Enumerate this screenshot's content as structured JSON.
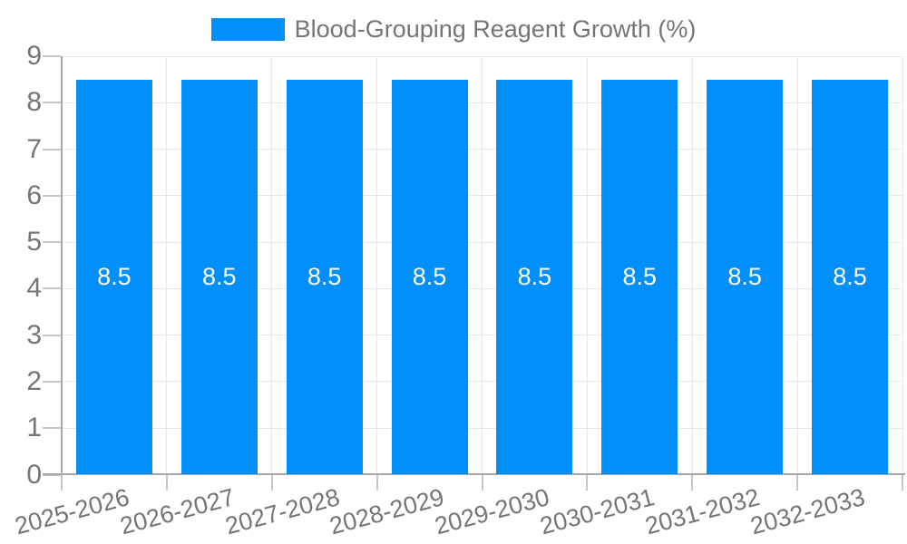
{
  "legend": {
    "label": "Blood-Grouping Reagent Growth (%)"
  },
  "chart_data": {
    "type": "bar",
    "title": "Blood-Grouping Reagent Growth (%)",
    "categories": [
      "2025-2026",
      "2026-2027",
      "2027-2028",
      "2028-2029",
      "2029-2030",
      "2030-2031",
      "2031-2032",
      "2032-2033"
    ],
    "values": [
      8.5,
      8.5,
      8.5,
      8.5,
      8.5,
      8.5,
      8.5,
      8.5
    ],
    "bar_labels": [
      "8.5",
      "8.5",
      "8.5",
      "8.5",
      "8.5",
      "8.5",
      "8.5",
      "8.5"
    ],
    "xlabel": "",
    "ylabel": "",
    "ylim": [
      0,
      9
    ],
    "yticks": [
      0,
      1,
      2,
      3,
      4,
      5,
      6,
      7,
      8,
      9
    ],
    "grid": true,
    "legend_position": "top",
    "colors": {
      "bar": "#008FFB",
      "bar_label": "#FFFFFF",
      "axis_text": "#757575",
      "gridline": "#E7E7E7",
      "axis_line": "#A8A8A8",
      "tick": "#C6C6C6",
      "background": "#FFFFFF"
    }
  }
}
